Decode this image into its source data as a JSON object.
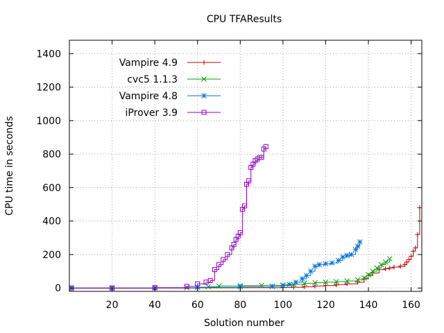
{
  "chart_data": {
    "type": "line",
    "title": "CPU TFAResults",
    "xlabel": "Solution number",
    "ylabel": "CPU time in seconds",
    "xlim": [
      0,
      165
    ],
    "ylim": [
      -20,
      1480
    ],
    "xticks": [
      20,
      40,
      60,
      80,
      100,
      120,
      140,
      160
    ],
    "yticks": [
      0,
      200,
      400,
      600,
      800,
      1000,
      1200,
      1400
    ],
    "grid": true,
    "legend_position": "top-left",
    "series": [
      {
        "name": "Vampire 4.9",
        "color": "#c00000",
        "marker": "plus",
        "x": [
          1,
          20,
          40,
          60,
          80,
          100,
          105,
          110,
          115,
          120,
          125,
          130,
          135,
          138,
          140,
          142,
          145,
          148,
          150,
          152,
          155,
          157,
          158,
          159,
          160,
          161,
          162,
          163,
          164
        ],
        "y": [
          0,
          0,
          0,
          1,
          2,
          3,
          5,
          8,
          12,
          15,
          20,
          25,
          35,
          55,
          75,
          90,
          110,
          115,
          120,
          125,
          130,
          140,
          155,
          170,
          190,
          220,
          240,
          320,
          480
        ]
      },
      {
        "name": "cvc5 1.1.3",
        "color": "#00a000",
        "marker": "x",
        "x": [
          1,
          20,
          40,
          55,
          60,
          65,
          70,
          80,
          90,
          100,
          105,
          110,
          115,
          120,
          125,
          130,
          135,
          138,
          140,
          142,
          144,
          146,
          148,
          150
        ],
        "y": [
          0,
          0,
          1,
          2,
          5,
          8,
          12,
          14,
          16,
          18,
          22,
          28,
          32,
          35,
          38,
          42,
          50,
          60,
          80,
          100,
          120,
          140,
          155,
          175
        ]
      },
      {
        "name": "Vampire 4.8",
        "color": "#0070e0",
        "marker": "star",
        "x": [
          1,
          20,
          40,
          60,
          80,
          95,
          100,
          103,
          106,
          109,
          111,
          113,
          115,
          117,
          120,
          123,
          126,
          128,
          130,
          132,
          134,
          135,
          136
        ],
        "y": [
          0,
          0,
          1,
          4,
          8,
          10,
          15,
          22,
          35,
          55,
          75,
          100,
          130,
          140,
          145,
          150,
          165,
          185,
          195,
          200,
          230,
          250,
          275
        ]
      },
      {
        "name": "iProver 3.9",
        "color": "#9000c0",
        "marker": "square",
        "x": [
          1,
          20,
          40,
          55,
          60,
          64,
          66,
          68,
          70,
          72,
          74,
          76,
          77,
          78,
          79,
          80,
          81,
          82,
          83,
          84,
          85,
          86,
          87,
          88,
          89,
          90,
          91,
          92
        ],
        "y": [
          0,
          0,
          2,
          10,
          25,
          35,
          45,
          110,
          140,
          170,
          200,
          240,
          260,
          290,
          310,
          330,
          470,
          490,
          620,
          640,
          720,
          740,
          760,
          770,
          780,
          780,
          830,
          845
        ]
      }
    ]
  }
}
